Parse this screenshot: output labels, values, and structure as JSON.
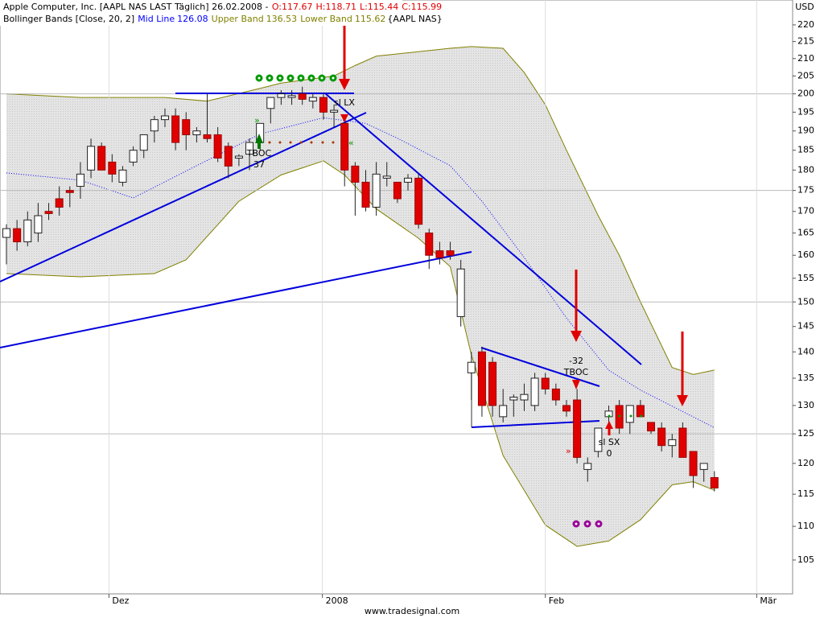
{
  "chart_data": {
    "type": "candlestick",
    "title": "Apple Computer, Inc. [AAPL NAS LAST Täglich] 26.02.2008 -",
    "quote": [
      "O:117.67",
      "H:118.71",
      "L:115.44",
      "C:115.99"
    ],
    "indicator": "Bollinger Bands [Close, 20, 2]",
    "indicator_suffix": "{AAPL NAS}",
    "y_unit": "USD",
    "footer": "www.tradesignal.com",
    "log_scale": true,
    "grid": true,
    "xlim": [
      -0.61,
      74.4
    ],
    "xticks": [
      {
        "value": 9.7,
        "label": "Dez"
      },
      {
        "value": 29.9,
        "label": "2008"
      },
      {
        "value": 51,
        "label": "Feb"
      },
      {
        "value": 71,
        "label": "Mär"
      }
    ],
    "ylim": [
      100.2,
      227.7
    ],
    "yticks": [
      105,
      110,
      115,
      120,
      125,
      130,
      135,
      140,
      145,
      150,
      155,
      160,
      165,
      170,
      175,
      180,
      185,
      190,
      195,
      200,
      205,
      210,
      215,
      220
    ],
    "colors": {
      "up": "#ffffff",
      "down": "#e00000"
    },
    "open": [
      164,
      166,
      163,
      165,
      170,
      173,
      175,
      176,
      180,
      186,
      182,
      177,
      182,
      185,
      190,
      193,
      194,
      193,
      189,
      189,
      189,
      186,
      183,
      184,
      187,
      196,
      199,
      199,
      200,
      198,
      199,
      195,
      192,
      181,
      177,
      171,
      178,
      177,
      177,
      178,
      165,
      161,
      161,
      147,
      136,
      140,
      138,
      128,
      131,
      131,
      130,
      135,
      133,
      130,
      131,
      119,
      122,
      128,
      130,
      127,
      130,
      127,
      126,
      123,
      126,
      122,
      119,
      117.67
    ],
    "high": [
      167,
      168,
      170,
      172,
      172,
      176,
      176,
      182,
      188,
      187,
      184,
      181,
      186,
      189,
      194,
      196,
      196,
      195,
      191,
      200,
      191,
      187,
      184,
      188,
      192,
      199,
      201,
      201,
      202,
      200,
      200,
      197,
      194,
      182,
      180,
      182,
      182,
      177,
      179,
      179,
      166,
      163,
      163,
      159,
      140,
      141,
      139,
      133,
      132,
      134,
      136,
      136,
      134,
      131,
      133,
      121,
      126,
      130,
      131,
      130,
      131,
      127,
      127,
      125,
      127,
      122,
      120,
      118.71
    ],
    "low": [
      158,
      161,
      162,
      163,
      168,
      169,
      171,
      173,
      178,
      180,
      177,
      176,
      181,
      183,
      187,
      191,
      185,
      185,
      187,
      187,
      182,
      178,
      181,
      180,
      185,
      192,
      197,
      197,
      197,
      196,
      193,
      191,
      176,
      169,
      170,
      169,
      176,
      172,
      175,
      166,
      157,
      158,
      159,
      145,
      131,
      128,
      128,
      127,
      128,
      129,
      129,
      132,
      130,
      128,
      120,
      117,
      121,
      126,
      125,
      125,
      128,
      125,
      122,
      121,
      121,
      116,
      117,
      115.44
    ],
    "close": [
      166,
      163,
      168,
      169,
      169.5,
      171,
      174.5,
      179,
      186,
      180,
      179,
      180,
      185,
      189,
      193,
      194,
      187,
      189,
      190,
      188,
      183,
      181,
      183.5,
      187,
      192,
      199,
      200,
      199.5,
      198.5,
      199,
      195,
      195.5,
      180,
      177,
      171,
      179,
      178.5,
      173,
      178,
      167,
      160,
      159.5,
      160,
      157,
      138,
      130,
      130,
      130,
      131.5,
      132,
      135,
      133,
      131,
      129,
      121,
      120,
      126,
      129,
      126,
      130,
      128,
      125.5,
      123,
      124,
      121,
      118,
      120,
      115.99
    ],
    "bands": [
      {
        "name": "Mid Line",
        "label": "126.08",
        "color": "#0000ff",
        "x": [
          0,
          7,
          12,
          18,
          24,
          30,
          34,
          37,
          42,
          45,
          49,
          53,
          57,
          60,
          67
        ],
        "values": [
          179.3,
          177.5,
          173.2,
          181.1,
          189.2,
          193.5,
          192,
          188.1,
          181.1,
          172.4,
          159.5,
          146.7,
          136.5,
          132.8,
          126.08
        ]
      },
      {
        "name": "Upper Band",
        "label": "136.53",
        "color": "#808000",
        "x": [
          0,
          7,
          15,
          19,
          24,
          26,
          31,
          33,
          35,
          42,
          44,
          47,
          49,
          51,
          53,
          56,
          58,
          60,
          63,
          65,
          67
        ],
        "values": [
          200,
          199,
          199,
          198,
          201.5,
          203,
          205,
          208,
          210.7,
          213,
          213.5,
          213,
          206,
          197,
          185,
          169,
          160,
          150,
          137,
          135.7,
          136.53
        ]
      },
      {
        "name": "Lower Band",
        "label": "115.62",
        "color": "#808000",
        "x": [
          0,
          7,
          14,
          17,
          22,
          26,
          30,
          32,
          35,
          39,
          42,
          44,
          47,
          51,
          54,
          57,
          60,
          63,
          65,
          67
        ],
        "values": [
          156,
          155.3,
          156,
          159,
          172.4,
          178.8,
          182.3,
          178.8,
          170.6,
          163.8,
          157.5,
          139.4,
          121.3,
          110.2,
          107,
          107.8,
          111,
          116.5,
          117,
          115.62
        ]
      }
    ],
    "annotations": [
      "sl LX",
      "TBOC",
      "37",
      "-32",
      "TBOC",
      "sl SX",
      "0"
    ]
  }
}
